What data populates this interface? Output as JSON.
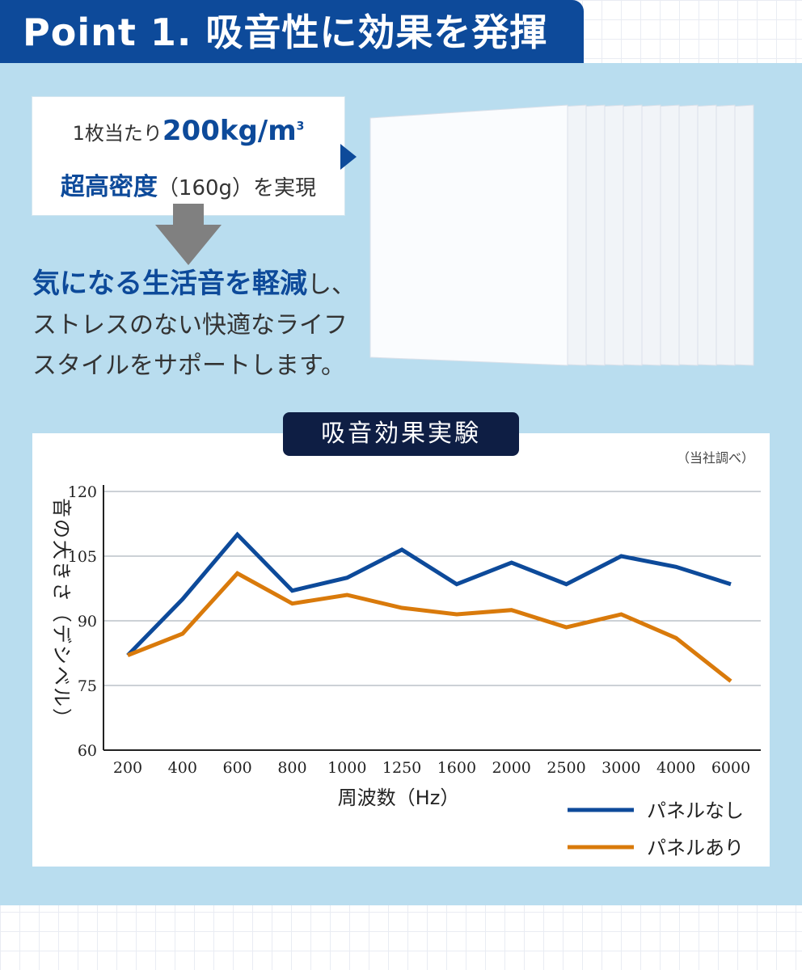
{
  "header": {
    "title": "Point 1. 吸音性に効果を発揮"
  },
  "spec": {
    "line1_prefix": "1枚当たり",
    "line1_value": "200kg/m",
    "line1_sup": "3",
    "line2_bold": "超高密度",
    "line2_rest": "（160g）を実現"
  },
  "description": {
    "bold": "気になる生活音を軽減",
    "after_bold": "し、",
    "line2": "ストレスのない快適なライフ",
    "line3": "スタイルをサポートします。"
  },
  "colors": {
    "brand_blue": "#0d4a9a",
    "orange": "#d97a0b",
    "panel_bg": "#b9ddef",
    "badge_navy": "#0e1e44"
  },
  "chart_badge": "吸音効果実験",
  "chart_data": {
    "type": "line",
    "title": "吸音効果実験",
    "note": "（当社調べ）",
    "ylabel": "音の大きさ（デシベル）",
    "xlabel": "周波数（Hz）",
    "ylim": [
      60,
      120
    ],
    "yticks": [
      "120",
      "105",
      "90",
      "75",
      "60"
    ],
    "categories": [
      "200",
      "400",
      "600",
      "800",
      "1000",
      "1250",
      "1600",
      "2000",
      "2500",
      "3000",
      "4000",
      "6000"
    ],
    "grid": "horizontal",
    "legend_position": "bottom-right",
    "series": [
      {
        "name": "パネルなし",
        "color": "#0d4a9a",
        "values": [
          82,
          95,
          110,
          97,
          100,
          106.5,
          98.5,
          103.5,
          98.5,
          105,
          102.5,
          98.5
        ]
      },
      {
        "name": "パネルあり",
        "color": "#d97a0b",
        "values": [
          82,
          87,
          101,
          94,
          96,
          93,
          91.5,
          92.5,
          88.5,
          91.5,
          86,
          76
        ]
      }
    ]
  }
}
